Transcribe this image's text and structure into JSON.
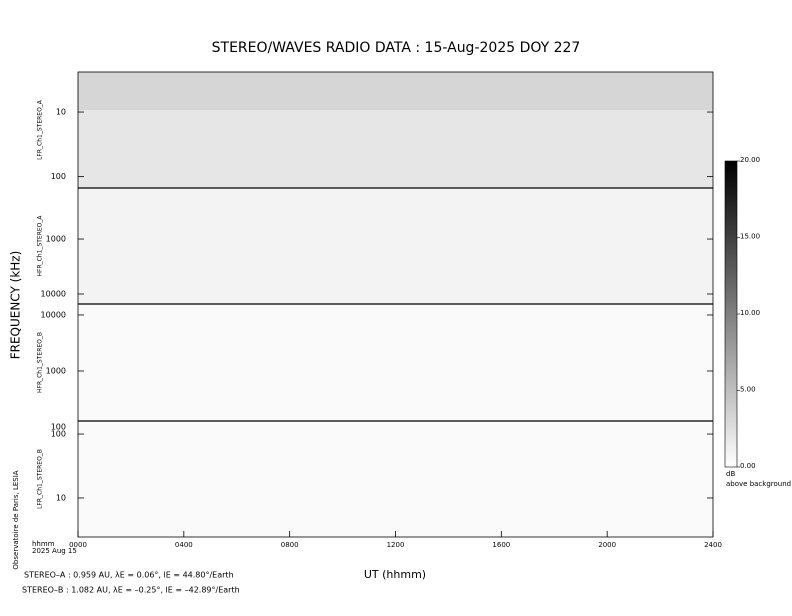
{
  "chart_data": {
    "type": "spectrogram",
    "title": "STEREO/WAVES  RADIO  DATA : 15-Aug-2025  DOY 227",
    "y_label": "FREQUENCY (kHz)",
    "x_label": "UT (hhmm)",
    "x_unit_label": "hhmm",
    "date_label": "2025 Aug 15",
    "credit": "Observatoire de Paris, LESIA",
    "xlim": [
      0,
      24
    ],
    "xticks": [
      {
        "value": 0,
        "label": "0000"
      },
      {
        "value": 4,
        "label": "0400"
      },
      {
        "value": 8,
        "label": "0800"
      },
      {
        "value": 12,
        "label": "1200"
      },
      {
        "value": 16,
        "label": "1600"
      },
      {
        "value": 20,
        "label": "2000"
      },
      {
        "value": 24,
        "label": "2400"
      }
    ],
    "panels": [
      {
        "name": "LFR_Ch1_STEREO_A",
        "log": true,
        "ylim": [
          2.4,
          150
        ],
        "yticks": [
          10,
          100
        ],
        "color": "#e6e6e6"
      },
      {
        "name": "HFR_Ch1_STEREO_A",
        "log": true,
        "ylim": [
          118,
          15200
        ],
        "yticks": [
          1000,
          {
            "value": 10000,
            "label": "10000"
          }
        ],
        "color": "#f3f3f3"
      },
      {
        "name": "HFR_Ch1_STEREO_B",
        "log": true,
        "ylim": [
          15700,
          128
        ],
        "yticks": [
          {
            "value": 10000,
            "label": "10000"
          },
          1000,
          100
        ],
        "color": "#fafafa"
      },
      {
        "name": "LFR_Ch1_STEREO_B",
        "log": true,
        "ylim": [
          160,
          2.45
        ],
        "yticks": [
          100,
          10
        ],
        "color": "#fafafa"
      }
    ],
    "colorbar": {
      "ylim": [
        0,
        20
      ],
      "yticks": [
        {
          "value": 0,
          "label": "0.00"
        },
        {
          "value": 5,
          "label": "5.00"
        },
        {
          "value": 10,
          "label": "10.00"
        },
        {
          "value": 15,
          "label": "15.00"
        },
        {
          "value": 20,
          "label": "20.00"
        }
      ],
      "unit": "dB",
      "caption": "above background",
      "colors": [
        "#ffffff",
        "#000000"
      ]
    },
    "footer": [
      "STEREO–A : 0.959 AU, λE = 0.06°, lE = 44.80°/Earth",
      "STEREO–B : 1.082 AU, λE = –0.25°, lE = –42.89°/Earth"
    ]
  }
}
